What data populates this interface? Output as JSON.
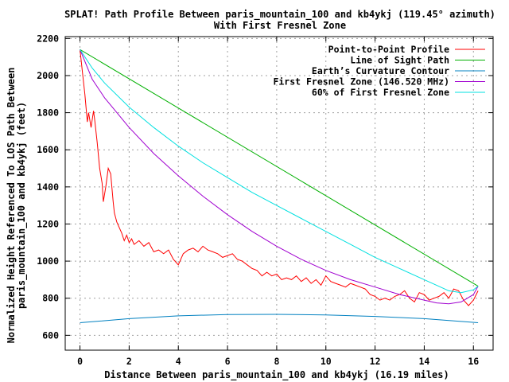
{
  "chart_data": {
    "type": "line",
    "title": "SPLAT! Path Profile Between paris_mountain_100 and kb4ykj (119.45° azimuth)",
    "subtitle": "With First Fresnel Zone",
    "xlabel": "Distance Between paris_mountain_100 and kb4ykj (16.19 miles)",
    "ylabel_line1": "Normalized Height Referenced To LOS Path Between",
    "ylabel_line2": "paris_mountain_100 and kb4ykj (feet)",
    "xlim": [
      -0.6,
      16.8
    ],
    "ylim": [
      520,
      2210
    ],
    "x_ticks": [
      0,
      2,
      4,
      6,
      8,
      10,
      12,
      14,
      16
    ],
    "y_ticks": [
      600,
      800,
      1000,
      1200,
      1400,
      1600,
      1800,
      2000,
      2200
    ],
    "grid": true,
    "legend_position": "top-right",
    "series": [
      {
        "name": "Point-to-Point Profile",
        "color": "#ff0000",
        "x": [
          0,
          0.1,
          0.2,
          0.3,
          0.35,
          0.45,
          0.55,
          0.6,
          0.7,
          0.8,
          0.9,
          0.95,
          1.05,
          1.15,
          1.25,
          1.35,
          1.4,
          1.5,
          1.6,
          1.7,
          1.8,
          1.9,
          2.0,
          2.1,
          2.2,
          2.4,
          2.6,
          2.8,
          3.0,
          3.2,
          3.4,
          3.6,
          3.8,
          4.0,
          4.2,
          4.4,
          4.6,
          4.8,
          5.0,
          5.2,
          5.4,
          5.6,
          5.8,
          6.0,
          6.2,
          6.4,
          6.6,
          6.8,
          7.0,
          7.2,
          7.4,
          7.6,
          7.8,
          8.0,
          8.2,
          8.4,
          8.6,
          8.8,
          9.0,
          9.2,
          9.4,
          9.6,
          9.8,
          10.0,
          10.2,
          10.4,
          10.6,
          10.8,
          11.0,
          11.2,
          11.4,
          11.6,
          11.8,
          12.0,
          12.2,
          12.4,
          12.6,
          12.8,
          13.0,
          13.2,
          13.4,
          13.6,
          13.8,
          14.0,
          14.2,
          14.4,
          14.6,
          14.8,
          15.0,
          15.2,
          15.4,
          15.6,
          15.8,
          16.0,
          16.19
        ],
        "y": [
          2140,
          2020,
          1900,
          1750,
          1800,
          1720,
          1810,
          1760,
          1640,
          1500,
          1420,
          1320,
          1400,
          1500,
          1470,
          1320,
          1260,
          1210,
          1180,
          1150,
          1110,
          1140,
          1100,
          1120,
          1090,
          1110,
          1080,
          1100,
          1050,
          1060,
          1040,
          1060,
          1010,
          980,
          1040,
          1060,
          1070,
          1050,
          1080,
          1060,
          1050,
          1040,
          1020,
          1030,
          1040,
          1010,
          1000,
          980,
          960,
          950,
          920,
          940,
          920,
          930,
          900,
          910,
          900,
          920,
          890,
          910,
          880,
          900,
          870,
          920,
          890,
          880,
          870,
          860,
          880,
          870,
          860,
          850,
          820,
          810,
          790,
          800,
          790,
          810,
          820,
          840,
          800,
          780,
          830,
          820,
          790,
          800,
          810,
          830,
          800,
          850,
          840,
          790,
          760,
          790,
          840
        ]
      },
      {
        "name": "Line of Sight Path",
        "color": "#00b000",
        "x": [
          0,
          16.19
        ],
        "y": [
          2140,
          865
        ]
      },
      {
        "name": "Earth’s Curvature Contour",
        "color": "#0080c0",
        "x": [
          0,
          2,
          4,
          6,
          8,
          10,
          12,
          14,
          16.19
        ],
        "y": [
          668,
          690,
          705,
          712,
          713,
          710,
          702,
          690,
          668
        ]
      },
      {
        "name": "First Fresnel Zone (146.520 MHz)",
        "color": "#a000d0",
        "x": [
          0,
          0.5,
          1,
          2,
          3,
          4,
          5,
          6,
          7,
          8,
          9,
          10,
          11,
          12,
          13,
          14,
          14.5,
          15,
          15.5,
          16,
          16.19
        ],
        "y": [
          2140,
          1980,
          1880,
          1720,
          1580,
          1460,
          1350,
          1250,
          1160,
          1080,
          1010,
          950,
          900,
          860,
          820,
          790,
          775,
          770,
          780,
          820,
          865
        ]
      },
      {
        "name": "60% of First Fresnel Zone",
        "color": "#00e0e0",
        "x": [
          0,
          0.5,
          1,
          2,
          3,
          4,
          5,
          6,
          7,
          8,
          9,
          10,
          11,
          12,
          13,
          14,
          14.5,
          15,
          15.5,
          16,
          16.19
        ],
        "y": [
          2140,
          2040,
          1960,
          1830,
          1720,
          1620,
          1530,
          1450,
          1370,
          1300,
          1230,
          1160,
          1090,
          1020,
          960,
          900,
          870,
          840,
          830,
          845,
          865
        ]
      }
    ]
  }
}
